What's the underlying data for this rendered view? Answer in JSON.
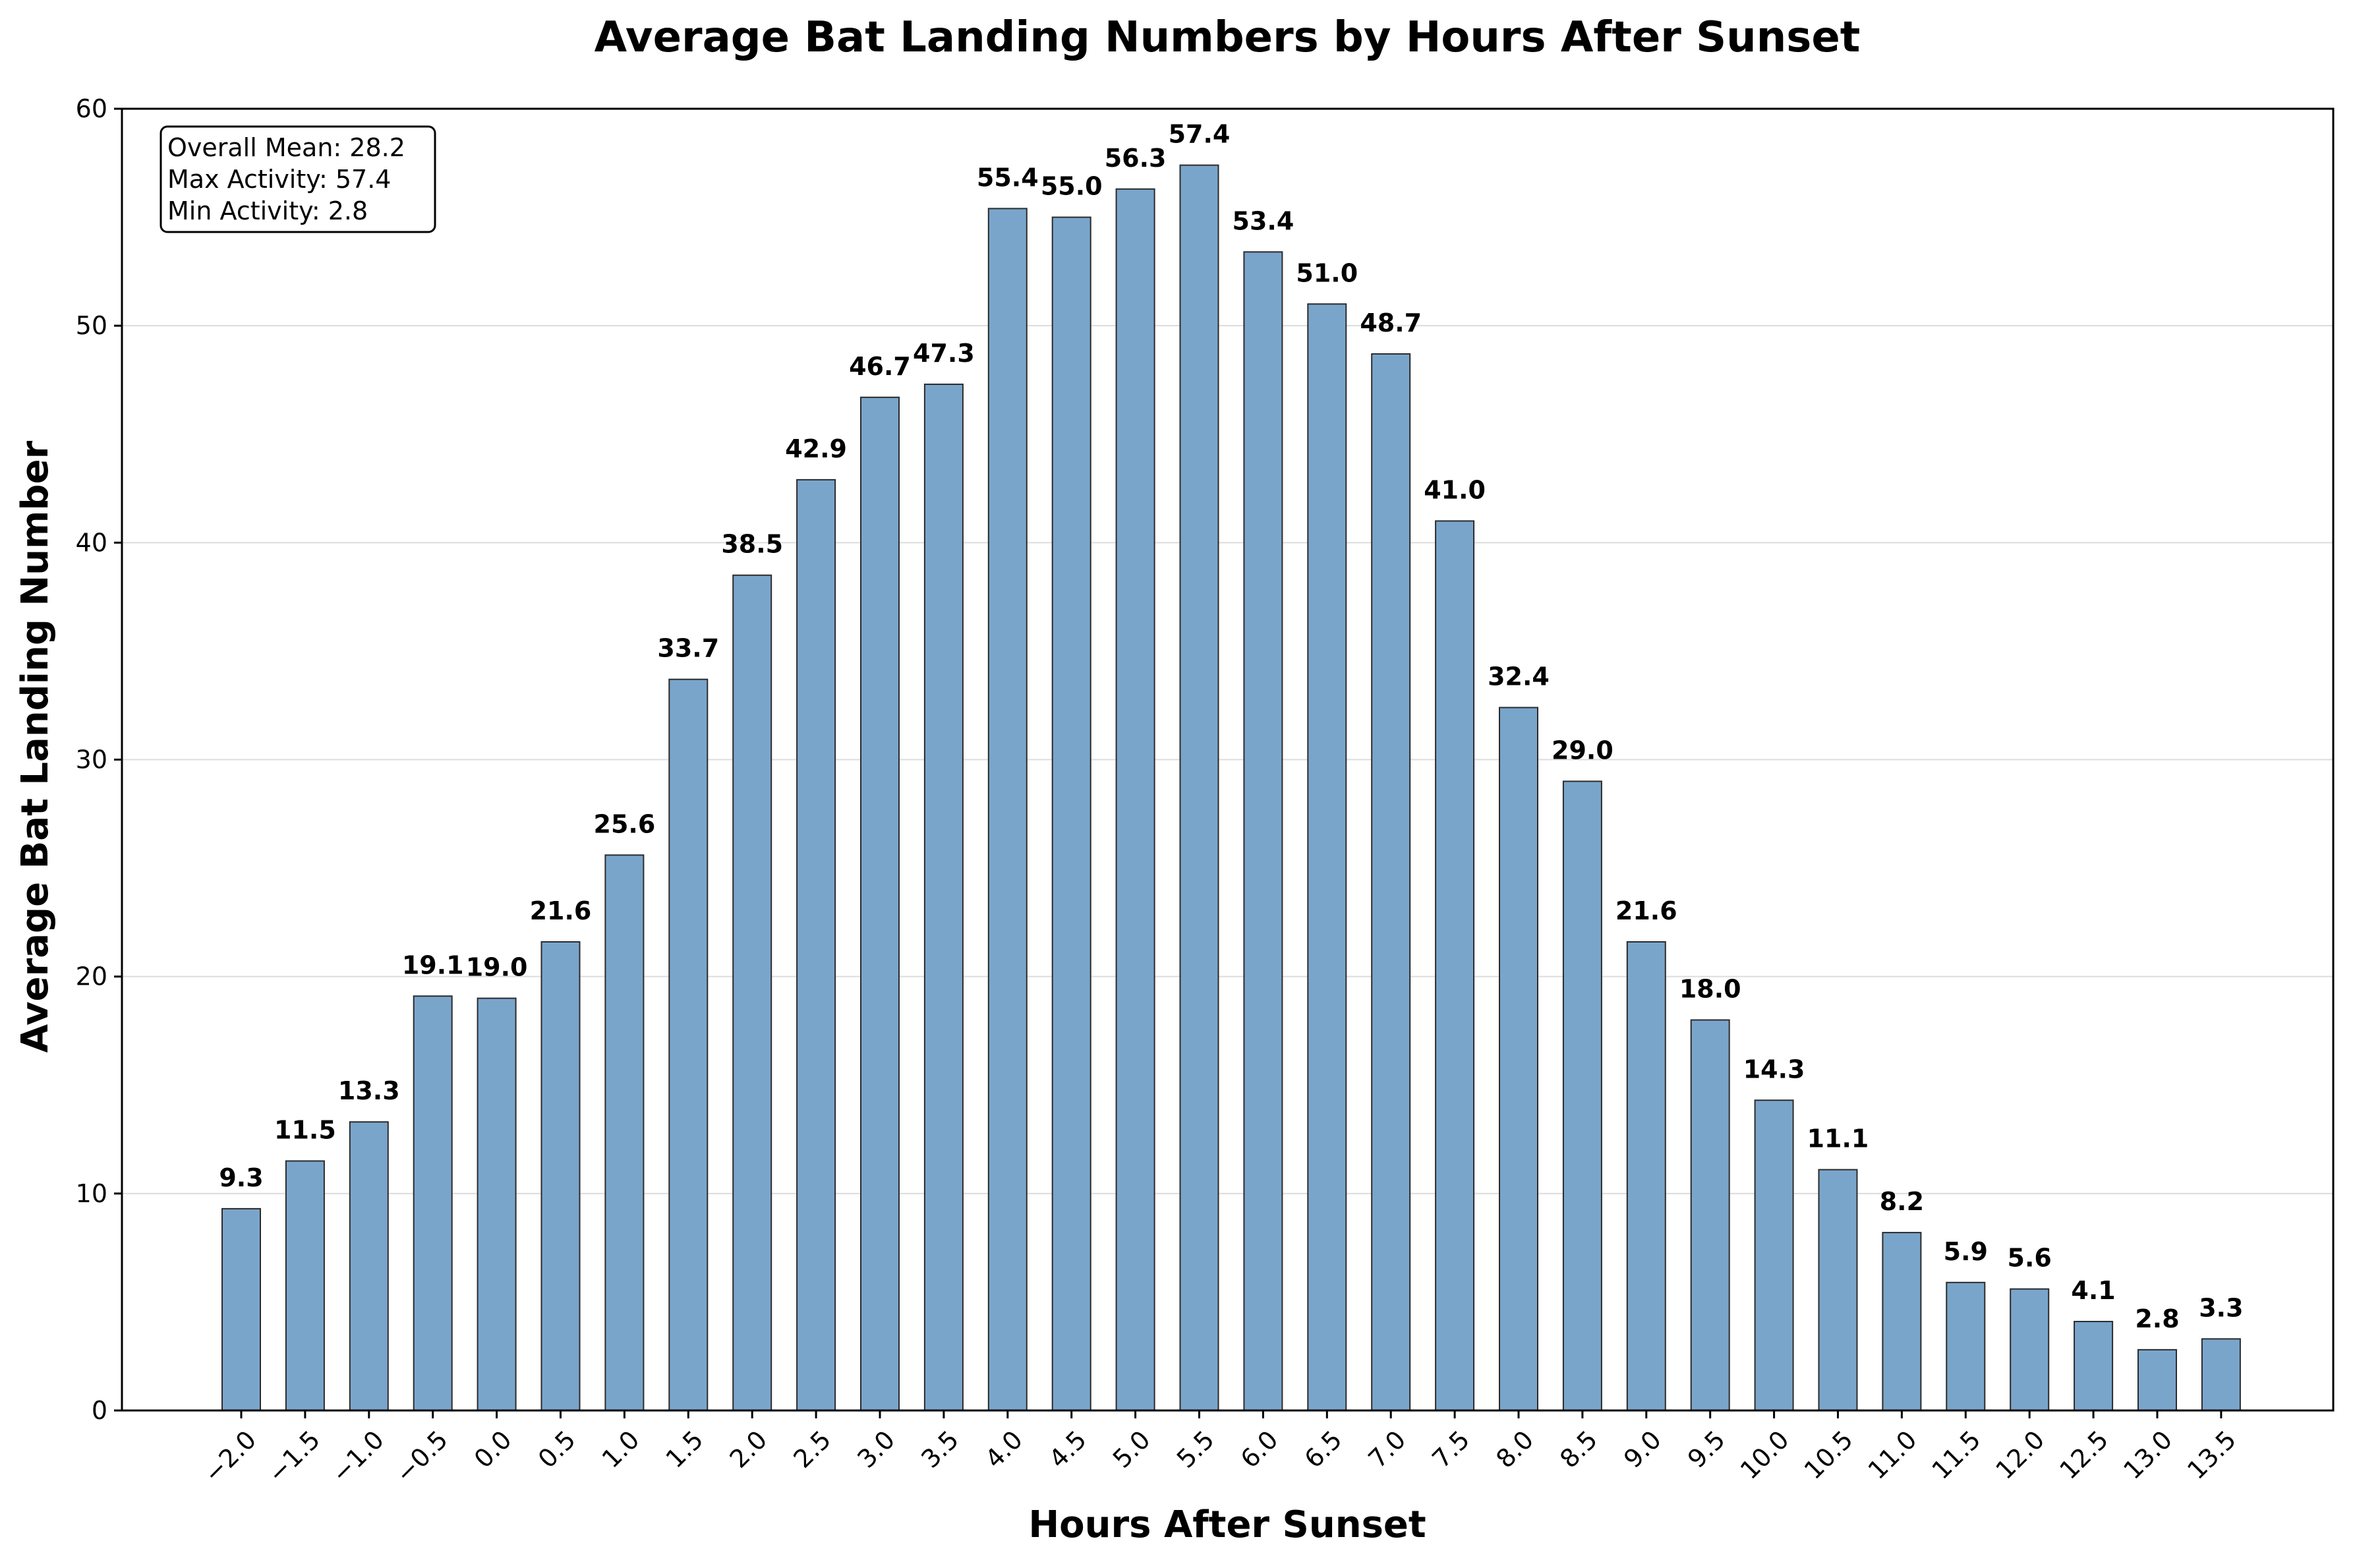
{
  "chart_data": {
    "type": "bar",
    "title": "Average Bat Landing Numbers by Hours After Sunset",
    "xlabel": "Hours After Sunset",
    "ylabel": "Average Bat Landing Number",
    "categories": [
      "−2.0",
      "−1.5",
      "−1.0",
      "−0.5",
      "0.0",
      "0.5",
      "1.0",
      "1.5",
      "2.0",
      "2.5",
      "3.0",
      "3.5",
      "4.0",
      "4.5",
      "5.0",
      "5.5",
      "6.0",
      "6.5",
      "7.0",
      "7.5",
      "8.0",
      "8.5",
      "9.0",
      "9.5",
      "10.0",
      "10.5",
      "11.0",
      "11.5",
      "12.0",
      "12.5",
      "13.0",
      "13.5"
    ],
    "x": [
      -2.0,
      -1.5,
      -1.0,
      -0.5,
      0.0,
      0.5,
      1.0,
      1.5,
      2.0,
      2.5,
      3.0,
      3.5,
      4.0,
      4.5,
      5.0,
      5.5,
      6.0,
      6.5,
      7.0,
      7.5,
      8.0,
      8.5,
      9.0,
      9.5,
      10.0,
      10.5,
      11.0,
      11.5,
      12.0,
      12.5,
      13.0,
      13.5
    ],
    "values": [
      9.3,
      11.5,
      13.3,
      19.1,
      19.0,
      21.6,
      25.6,
      33.7,
      38.5,
      42.9,
      46.7,
      47.3,
      55.4,
      55.0,
      56.3,
      57.4,
      53.4,
      51.0,
      48.7,
      41.0,
      32.4,
      29.0,
      21.6,
      18.0,
      14.3,
      11.1,
      8.2,
      5.9,
      5.6,
      4.1,
      2.8,
      3.3
    ],
    "data_labels": [
      "9.3",
      "11.5",
      "13.3",
      "19.1",
      "19.0",
      "21.6",
      "25.6",
      "33.7",
      "38.5",
      "42.9",
      "46.7",
      "47.3",
      "55.4",
      "55.0",
      "56.3",
      "57.4",
      "53.4",
      "51.0",
      "48.7",
      "41.0",
      "32.4",
      "29.0",
      "21.6",
      "18.0",
      "14.3",
      "11.1",
      "8.2",
      "5.9",
      "5.6",
      "4.1",
      "2.8",
      "3.3"
    ],
    "ylim": [
      0,
      60
    ],
    "yticks": [
      "0",
      "10",
      "20",
      "30",
      "40",
      "50",
      "60"
    ],
    "grid": "horizontal",
    "bar_color": "#7aa5cb",
    "bar_edge_color": "#2b2b2b",
    "stats_box": [
      "Overall Mean: 28.2",
      "Max Activity: 57.4",
      "Min Activity: 2.8"
    ]
  }
}
